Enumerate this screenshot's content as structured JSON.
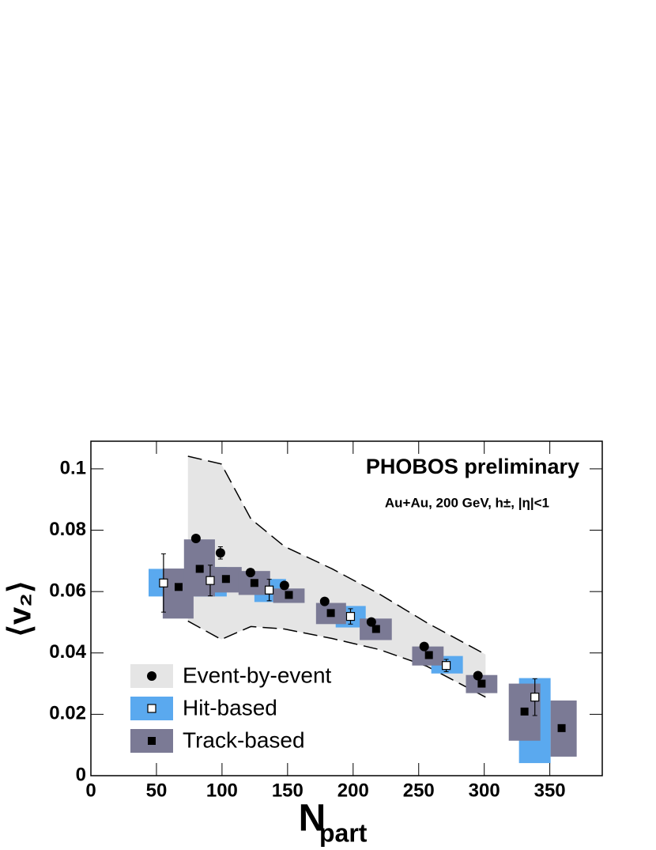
{
  "chart_data": {
    "type": "scatter",
    "annotations": [
      "PHOBOS preliminary",
      "Au+Au, 200 GeV, h±, |η|<1"
    ],
    "ylabel": "⟨v₂⟩",
    "xlabel": "N",
    "xlabel_subscript": "part",
    "xlim": [
      0,
      390
    ],
    "ylim": [
      0,
      0.109
    ],
    "xticks": [
      0,
      50,
      100,
      150,
      200,
      250,
      300,
      350
    ],
    "yticks": [
      0,
      0.02,
      0.04,
      0.06,
      0.08,
      0.1
    ],
    "legend": "lower left",
    "series": [
      {
        "name": "Event-by-event",
        "color": "#e5e5e5",
        "marker": "circle",
        "x": [
          80.1,
          98.8,
          121.7,
          147.6,
          178.3,
          213.9,
          254.2,
          295.2
        ],
        "values": [
          0.0773,
          0.0726,
          0.0662,
          0.062,
          0.0568,
          0.0501,
          0.0421,
          0.0326
        ],
        "errors": [
          null,
          0.002,
          null,
          null,
          null,
          null,
          null,
          null
        ],
        "band": {
          "x": [
            74,
            99.4,
            122,
            147.6,
            184,
            220,
            256,
            301
          ],
          "upper": [
            0.1041,
            0.1016,
            0.0837,
            0.0747,
            0.0674,
            0.0592,
            0.0499,
            0.0395
          ],
          "lower": [
            0.0504,
            0.0444,
            0.0486,
            0.0478,
            0.0447,
            0.0411,
            0.0357,
            0.0256
          ]
        }
      },
      {
        "name": "Hit-based",
        "color": "#5aa9ef",
        "marker": "open-square",
        "x": [
          55.4,
          91,
          136,
          198,
          271,
          338.6
        ],
        "values": [
          0.0628,
          0.0636,
          0.0605,
          0.0519,
          0.0359,
          0.0256
        ],
        "errors": [
          0.0095,
          0.005,
          0.0035,
          0.0025,
          0.002,
          0.006
        ],
        "box_x": [
          [
            44,
            67.5
          ],
          [
            79,
            103.6
          ],
          [
            124.7,
            148.8
          ],
          [
            186.7,
            209.6
          ],
          [
            259.6,
            283.7
          ],
          [
            326.5,
            350.6
          ]
        ],
        "box_y": [
          [
            0.0584,
            0.0674
          ],
          [
            0.0584,
            0.068
          ],
          [
            0.0566,
            0.0641
          ],
          [
            0.0483,
            0.0553
          ],
          [
            0.0333,
            0.039
          ],
          [
            0.0041,
            0.0318
          ]
        ]
      },
      {
        "name": "Track-based",
        "color": "#7b7a95",
        "marker": "square",
        "x": [
          66.9,
          83,
          103,
          124.7,
          151,
          183,
          217.5,
          257.8,
          298,
          330.7,
          359
        ],
        "values": [
          0.0615,
          0.0674,
          0.0641,
          0.0628,
          0.0589,
          0.053,
          0.0478,
          0.0393,
          0.03,
          0.0209,
          0.0155
        ],
        "box_x": [
          [
            54.8,
            78.3
          ],
          [
            71,
            94.6
          ],
          [
            91,
            115
          ],
          [
            112.6,
            136.7
          ],
          [
            139,
            163
          ],
          [
            171.7,
            194.6
          ],
          [
            205,
            229.5
          ],
          [
            245,
            269
          ],
          [
            286,
            310
          ],
          [
            318.7,
            342.8
          ],
          [
            350.6,
            370.5
          ]
        ],
        "box_y": [
          [
            0.0512,
            0.0675
          ],
          [
            0.0584,
            0.077
          ],
          [
            0.0597,
            0.068
          ],
          [
            0.0589,
            0.0667
          ],
          [
            0.0563,
            0.061
          ],
          [
            0.0494,
            0.0563
          ],
          [
            0.0442,
            0.0512
          ],
          [
            0.0359,
            0.0421
          ],
          [
            0.0269,
            0.0328
          ],
          [
            0.0114,
            0.03
          ],
          [
            0.0062,
            0.0245
          ]
        ]
      }
    ]
  }
}
